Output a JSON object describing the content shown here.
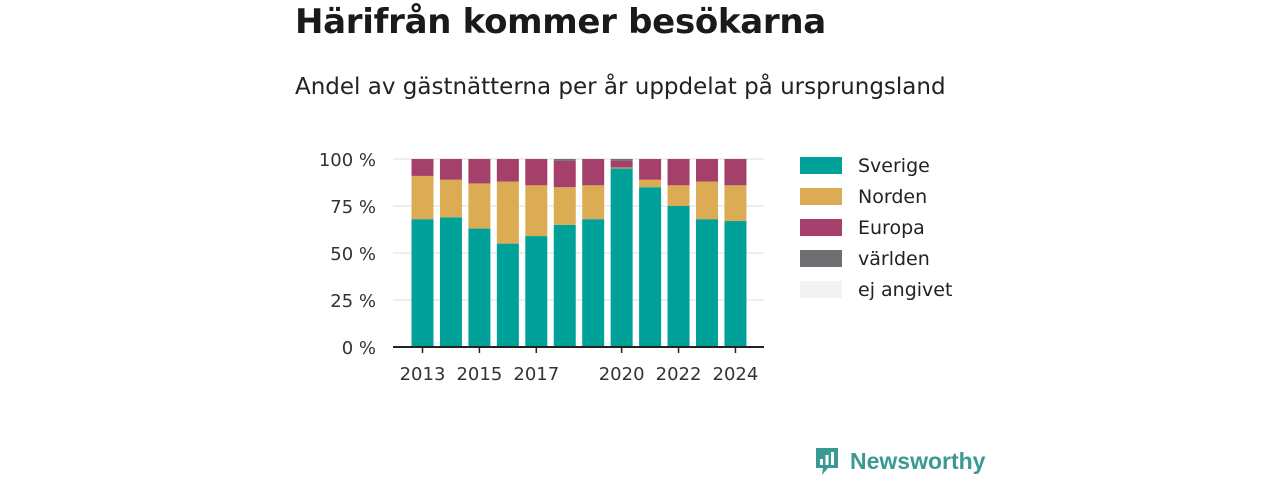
{
  "title": "Härifrån kommer besökarna",
  "subtitle": "Andel av gästnätterna per år uppdelat på ursprungsland",
  "brand": {
    "name": "Newsworthy",
    "icon": "newsworthy-logo-icon",
    "color": "#3a9a92"
  },
  "chart_data": {
    "type": "bar",
    "stacked": true,
    "title": "Härifrån kommer besökarna",
    "subtitle": "Andel av gästnätterna per år uppdelat på ursprungsland",
    "x": [
      2013,
      2014,
      2015,
      2016,
      2017,
      2018,
      2019,
      2020,
      2021,
      2022,
      2023,
      2024
    ],
    "x_tick_labels": [
      "2013",
      "2015",
      "2017",
      "2020",
      "2022",
      "2024"
    ],
    "y_tick_labels": [
      "0 %",
      "25 %",
      "50 %",
      "75 %",
      "100 %"
    ],
    "ylim": [
      0,
      100
    ],
    "y_unit": "%",
    "grid": true,
    "legend_position": "right",
    "series": [
      {
        "name": "Sverige",
        "color": "#00a199",
        "values": [
          68,
          69,
          63,
          55,
          59,
          65,
          68,
          95,
          85,
          75,
          68,
          67
        ]
      },
      {
        "name": "Norden",
        "color": "#dcac55",
        "values": [
          23,
          20,
          24,
          33,
          27,
          20,
          18,
          0.5,
          4,
          11,
          20,
          19
        ]
      },
      {
        "name": "Europa",
        "color": "#a4406a",
        "values": [
          9,
          11,
          13,
          12,
          14,
          14,
          14,
          3.5,
          11,
          14,
          12,
          14
        ]
      },
      {
        "name": "världen",
        "color": "#6e6f73",
        "values": [
          0,
          0,
          0,
          0,
          0,
          1,
          0,
          1,
          0,
          0,
          0,
          0
        ]
      },
      {
        "name": "ej angivet",
        "color": "#f3f3f3",
        "values": [
          0,
          0,
          0,
          0,
          0,
          0,
          0,
          0,
          0,
          0,
          0,
          0
        ]
      }
    ]
  }
}
